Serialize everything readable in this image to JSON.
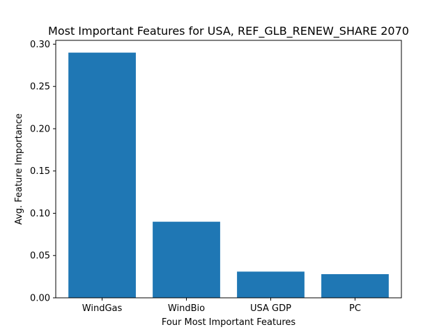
{
  "chart_data": {
    "type": "bar",
    "title": "Most Important Features for USA, REF_GLB_RENEW_SHARE 2070",
    "xlabel": "Four Most Important Features",
    "ylabel": "Avg. Feature Importance",
    "categories": [
      "WindGas",
      "WindBio",
      "USA GDP",
      "PC"
    ],
    "values": [
      0.29,
      0.09,
      0.031,
      0.028
    ],
    "ylim": [
      0,
      0.3045
    ],
    "yticks": [
      0.0,
      0.05,
      0.1,
      0.15,
      0.2,
      0.25,
      0.3
    ],
    "ytick_labels": [
      "0.00",
      "0.05",
      "0.10",
      "0.15",
      "0.20",
      "0.25",
      "0.30"
    ],
    "bar_color": "#1f77b4",
    "grid": false,
    "legend": "none"
  }
}
